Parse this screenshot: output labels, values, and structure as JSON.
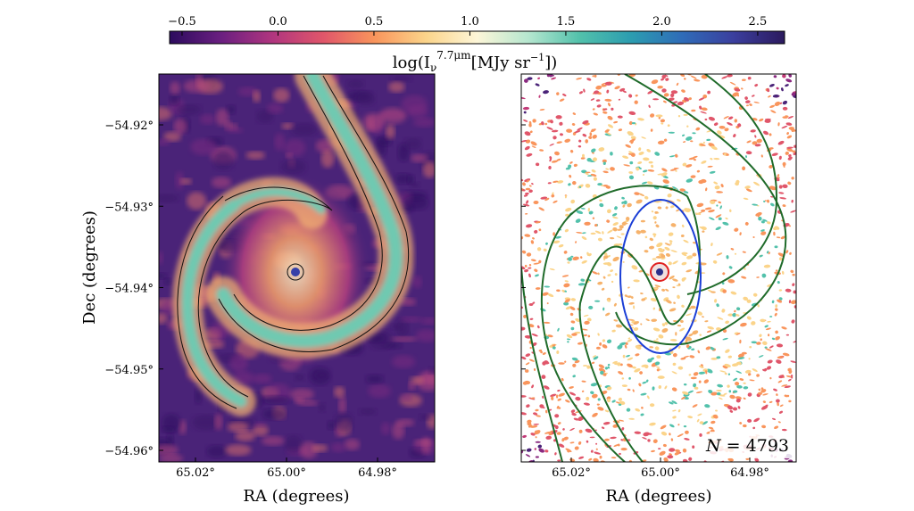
{
  "chart_data": [
    {
      "type": "colorbar",
      "label": "log(I_ν^{7.7μm}[MJy sr^{-1}])",
      "label_parts": {
        "base": "log(I",
        "sub": "ν",
        "sup": "7.7μm",
        "unit": "[MJy sr",
        "unit_sup": "−1",
        "close": "])"
      },
      "range": [
        -0.565,
        2.64
      ],
      "ticks": [
        -0.5,
        0.0,
        0.5,
        1.0,
        1.5,
        2.0,
        2.5
      ],
      "tick_labels": [
        "−0.5",
        "0.0",
        "0.5",
        "1.0",
        "1.5",
        "2.0",
        "2.5"
      ],
      "colormap_stops": [
        "#2c0b5e",
        "#6a1f80",
        "#b0357f",
        "#e0566a",
        "#f9955c",
        "#fbd48a",
        "#fdf6d8",
        "#b5e6cf",
        "#52c1ab",
        "#2c9db0",
        "#2f6cb8",
        "#3b3f9e",
        "#2c1a5e"
      ]
    },
    {
      "type": "image",
      "panel": "left",
      "xlabel": "RA (degrees)",
      "ylabel": "Dec (degrees)",
      "xticks": [
        65.02,
        65.0,
        64.98
      ],
      "xtick_labels": [
        "65.02°",
        "65.00°",
        "64.98°"
      ],
      "yticks": [
        -54.92,
        -54.93,
        -54.94,
        -54.95,
        -54.96
      ],
      "ytick_labels": [
        "−54.92°",
        "−54.93°",
        "−54.94°",
        "−54.95°",
        "−54.96°"
      ],
      "contours": "black",
      "background_color": "#4a2378"
    },
    {
      "type": "image",
      "panel": "right",
      "xlabel": "RA (degrees)",
      "xticks": [
        65.02,
        65.0,
        64.98
      ],
      "xtick_labels": [
        "65.02°",
        "65.00°",
        "64.98°"
      ],
      "annotation": "N = 4793",
      "annotation_parts": {
        "var": "N",
        "eq": " = ",
        "value": "4793"
      },
      "contour_colors": {
        "arms": "#1f6b2a",
        "bar": "#1a3ed6",
        "center": "#e02020"
      }
    }
  ]
}
